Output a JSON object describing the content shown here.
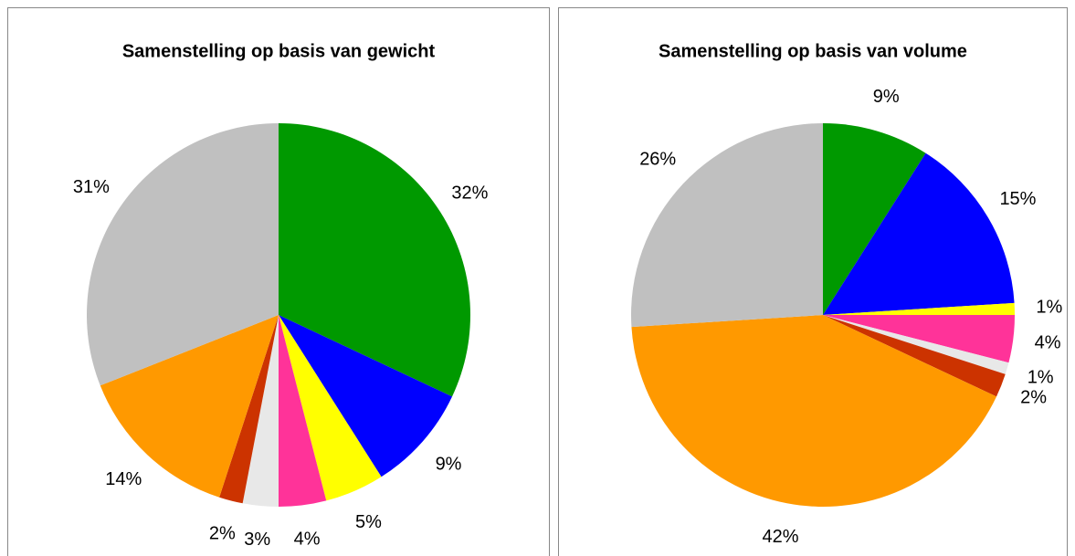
{
  "chart_data": [
    {
      "type": "pie",
      "title": "Samenstelling op basis van gewicht",
      "values": [
        32,
        9,
        5,
        4,
        3,
        2,
        14,
        31
      ],
      "value_labels": [
        "32%",
        "9%",
        "5%",
        "4%",
        "3%",
        "2%",
        "14%",
        "31%"
      ],
      "colors": [
        "#009900",
        "#0000ff",
        "#ffff00",
        "#ff3399",
        "#e8e8e8",
        "#cc3300",
        "#ff9900",
        "#c0c0c0"
      ]
    },
    {
      "type": "pie",
      "title": "Samenstelling op basis van volume",
      "values": [
        9,
        15,
        1,
        4,
        1,
        2,
        42,
        26
      ],
      "value_labels": [
        "9%",
        "15%",
        "1%",
        "4%",
        "1%",
        "2%",
        "42%",
        "26%"
      ],
      "colors": [
        "#009900",
        "#0000ff",
        "#ffff00",
        "#ff3399",
        "#e8e8e8",
        "#cc3300",
        "#ff9900",
        "#c0c0c0"
      ]
    }
  ]
}
